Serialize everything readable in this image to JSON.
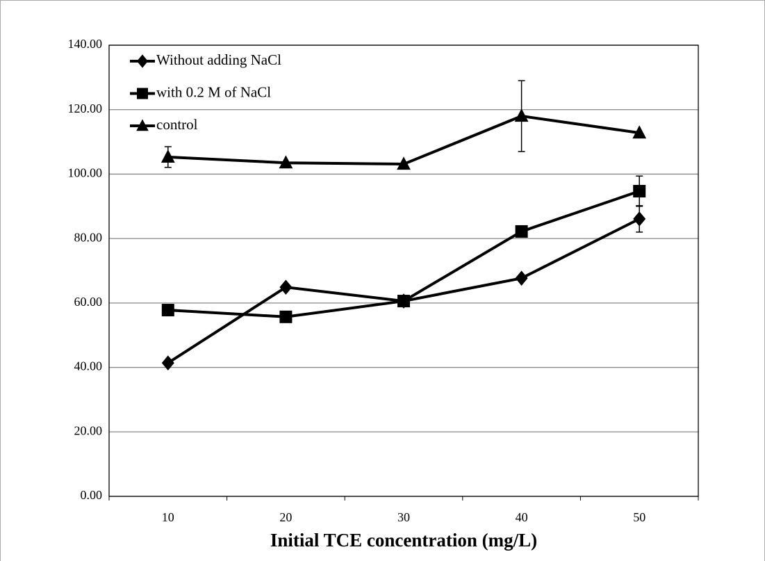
{
  "chart_data": {
    "type": "line",
    "x_label": "Initial TCE concentration (mg/L)",
    "categories": [
      "10",
      "20",
      "30",
      "40",
      "50"
    ],
    "series": [
      {
        "name": "Without adding NaCl",
        "color": "#000000",
        "marker": "diamond",
        "values": [
          41.4,
          64.9,
          60.6,
          67.7,
          86.1
        ],
        "errors": [
          null,
          null,
          null,
          null,
          4.1
        ]
      },
      {
        "name": "with 0.2 M of NaCl",
        "color": "#000000",
        "marker": "square",
        "values": [
          57.8,
          55.7,
          60.6,
          82.2,
          94.7
        ],
        "errors": [
          null,
          null,
          null,
          null,
          4.7
        ]
      },
      {
        "name": "control",
        "color": "#000000",
        "marker": "triangle",
        "values": [
          105.3,
          103.5,
          103.1,
          118.0,
          112.8
        ],
        "errors": [
          3.2,
          null,
          null,
          11.0,
          null
        ]
      }
    ],
    "ylim": [
      0,
      140
    ],
    "yticks": [
      {
        "value": 0,
        "label": "0.00"
      },
      {
        "value": 20,
        "label": "20.00"
      },
      {
        "value": 40,
        "label": "40.00"
      },
      {
        "value": 60,
        "label": "60.00"
      },
      {
        "value": 80,
        "label": "80.00"
      },
      {
        "value": 100,
        "label": "100.00"
      },
      {
        "value": 120,
        "label": "120.00"
      },
      {
        "value": 140,
        "label": "140.00"
      }
    ],
    "grid": true,
    "legend": "upper-left"
  }
}
